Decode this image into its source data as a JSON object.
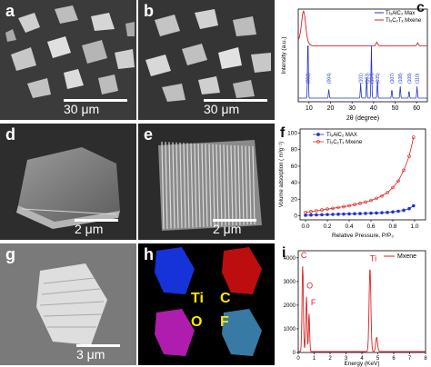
{
  "panels": {
    "a": {
      "label": "a",
      "scale": "30 μm"
    },
    "b": {
      "label": "b",
      "scale": "30 μm"
    },
    "d": {
      "label": "d",
      "scale": "2 μm"
    },
    "e": {
      "label": "e",
      "scale": "2 μm"
    },
    "g": {
      "label": "g",
      "scale": "3 μm"
    },
    "h": {
      "label": "h",
      "elements": [
        "Ti",
        "C",
        "O",
        "F"
      ]
    },
    "c": {
      "label": "c"
    },
    "f": {
      "label": "f"
    },
    "i": {
      "label": "i"
    }
  },
  "colors": {
    "max": "#2233cc",
    "mxene": "#dd2222",
    "ti_map": "#1a3cff",
    "c_map": "#dd1010",
    "o_map": "#cc22cc",
    "f_map": "#4aa3d9"
  },
  "chart_data": [
    {
      "type": "line",
      "panel": "c",
      "xlabel": "2θ (degree)",
      "ylabel": "Intensity (a.u.)",
      "xticks": [
        "10",
        "20",
        "30",
        "40",
        "50",
        "60"
      ],
      "xlim": [
        5,
        65
      ],
      "legend": [
        "Ti₃AlC₂ Max",
        "Ti₃C₂Tₓ Mxene"
      ],
      "legend_position": "top-right",
      "peak_labels": [
        {
          "x": 9.5,
          "text": "(002)"
        },
        {
          "x": 19.2,
          "text": "(004)"
        },
        {
          "x": 34.0,
          "text": "(101)"
        },
        {
          "x": 36.8,
          "text": "(103)"
        },
        {
          "x": 39.0,
          "text": "(104)"
        },
        {
          "x": 41.8,
          "text": "(105)"
        },
        {
          "x": 48.5,
          "text": "(107)"
        },
        {
          "x": 52.4,
          "text": "(108)"
        },
        {
          "x": 56.5,
          "text": "(109)"
        },
        {
          "x": 60.2,
          "text": "(110)"
        }
      ]
    },
    {
      "type": "line",
      "panel": "f",
      "xlabel": "Relative Pressure, P/P₀",
      "ylabel": "Volume adsorption ( m³g⁻¹)",
      "xticks": [
        "0.0",
        "0.2",
        "0.4",
        "0.6",
        "0.8",
        "1.0"
      ],
      "yticks": [
        "0",
        "20",
        "40",
        "60",
        "80",
        "100"
      ],
      "xlim": [
        -0.05,
        1.1
      ],
      "ylim": [
        -5,
        105
      ],
      "legend_position": "top-left",
      "series": [
        {
          "name": "Ti₃AlC₂ MAX",
          "x": [
            0.0,
            0.05,
            0.1,
            0.15,
            0.2,
            0.25,
            0.3,
            0.35,
            0.4,
            0.45,
            0.5,
            0.55,
            0.6,
            0.65,
            0.7,
            0.75,
            0.8,
            0.85,
            0.9,
            0.95,
            0.99
          ],
          "y": [
            0.5,
            0.8,
            1,
            1.2,
            1.4,
            1.6,
            1.8,
            2,
            2.2,
            2.4,
            2.6,
            2.8,
            3,
            3.3,
            3.6,
            4,
            4.6,
            5.4,
            6.6,
            8.5,
            12
          ]
        },
        {
          "name": "Ti₃C₂Tₓ Mxene",
          "x": [
            0.0,
            0.05,
            0.1,
            0.15,
            0.2,
            0.25,
            0.3,
            0.35,
            0.4,
            0.45,
            0.5,
            0.55,
            0.6,
            0.65,
            0.7,
            0.75,
            0.8,
            0.85,
            0.9,
            0.95,
            0.99
          ],
          "y": [
            4,
            5,
            6,
            7,
            8,
            9,
            10,
            11,
            12,
            13.5,
            15,
            16.5,
            18.5,
            21,
            24,
            28,
            34,
            42,
            55,
            72,
            95
          ]
        }
      ]
    },
    {
      "type": "line",
      "panel": "i",
      "xlabel": "Energy (KeV)",
      "xticks": [
        "0",
        "1",
        "2",
        "3",
        "4",
        "5",
        "6",
        "7",
        "8"
      ],
      "yticks": [
        "0",
        "1000",
        "2000",
        "3000",
        "4000"
      ],
      "xlim": [
        0,
        8
      ],
      "ylim": [
        0,
        4300
      ],
      "legend": [
        "Mxene"
      ],
      "legend_position": "top-right",
      "peak_labels": [
        {
          "x": 0.28,
          "text": "C"
        },
        {
          "x": 0.52,
          "text": "O"
        },
        {
          "x": 0.68,
          "text": "F"
        },
        {
          "x": 4.51,
          "text": "Ti"
        }
      ]
    }
  ]
}
